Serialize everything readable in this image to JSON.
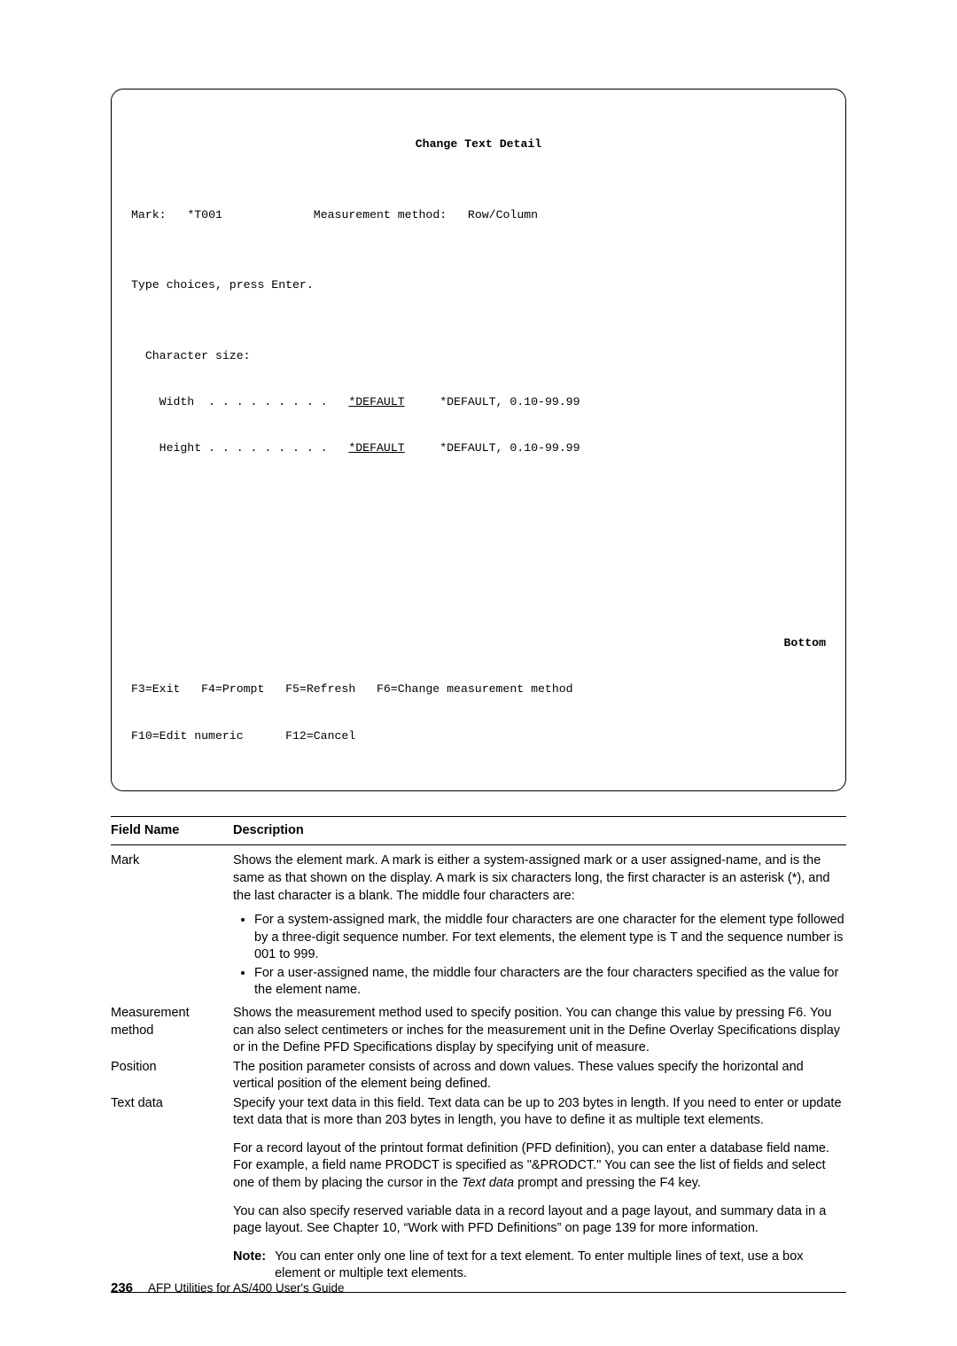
{
  "screen": {
    "title": "Change Text Detail",
    "mark_label": "Mark:",
    "mark_value": "*T001",
    "mm_label": "Measurement method:",
    "mm_value": "Row/Column",
    "instruct": "Type choices, press Enter.",
    "char_size_label": "Character size:",
    "width_label": "Width  . . . . . . . . .",
    "width_value": "*DEFAULT",
    "width_hint": "*DEFAULT, 0.10-99.99",
    "height_label": "Height . . . . . . . . .",
    "height_value": "*DEFAULT",
    "height_hint": "*DEFAULT, 0.10-99.99",
    "bottom": "Bottom",
    "fkeys1": "F3=Exit   F4=Prompt   F5=Refresh   F6=Change measurement method",
    "fkeys2": "F10=Edit numeric      F12=Cancel"
  },
  "table": {
    "head_name": "Field Name",
    "head_desc": "Description",
    "rows": {
      "mark": {
        "name": "Mark",
        "desc_p1": "Shows the element mark.  A mark is either a system-assigned mark or a user assigned-name, and is the same as that shown on the display. A mark is six characters long, the first character is an asterisk (*), and the last character is a blank.  The middle four characters are:",
        "li1": "For a system-assigned mark, the middle four characters are one character for the element type followed by a three-digit sequence number.  For text elements, the element type is T and the sequence number is 001 to 999.",
        "li2": "For a user-assigned name, the middle four characters are the four characters specified as the value for the element name."
      },
      "mm": {
        "name": "Measurement method",
        "desc": "Shows the measurement method used to specify position.  You can change this value by pressing F6.  You can also select centimeters or inches for the measurement unit in the Define Overlay Specifications display or in the Define PFD Specifications display by specifying unit of measure."
      },
      "pos": {
        "name": "Position",
        "desc": "The position parameter consists of across and down values.  These values specify the horizontal and vertical position of the element being defined."
      },
      "textdata": {
        "name": "Text data",
        "p1": "Specify your text data in this field.  Text data can be up to 203 bytes in length.  If you need to enter or update text data that is more than 203 bytes in length, you have to define it as multiple text elements.",
        "p2a": "For a record layout of the printout format definition (PFD definition), you can enter a database field name.  For example, a field name PRODCT is specified as \"&PRODCT.\"  You can see the list of fields and select one of them by placing the cursor in the ",
        "p2_it": "Text data",
        "p2b": " prompt and pressing the F4 key.",
        "p3": "You can also specify reserved variable data in a record layout and a page layout, and summary data in a page layout.  See Chapter  10, “Work with PFD Definitions” on page  139 for more information.",
        "note_label": "Note:",
        "note_text": "You can enter only one line of text for a text element.  To enter multiple lines of text, use a box element or multiple text elements."
      }
    }
  },
  "footer": {
    "page": "236",
    "book": "AFP Utilities for AS/400 User's Guide"
  }
}
